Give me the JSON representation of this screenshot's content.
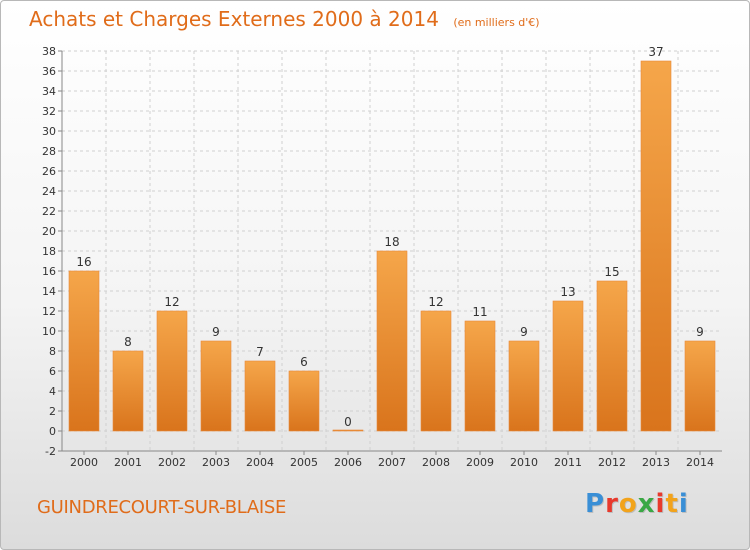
{
  "header": {
    "title": "Achats et Charges Externes 2000 à 2014",
    "unit": "(en milliers d'€)"
  },
  "footer": {
    "commune": "GUINDRECOURT-SUR-BLAISE",
    "brand_letters": [
      "P",
      "r",
      "o",
      "x",
      "i",
      "t",
      "i"
    ],
    "brand_colors": [
      "#3a8fd6",
      "#e8392c",
      "#f2a31b",
      "#3aa845",
      "#e8392c",
      "#f2a31b",
      "#3a8fd6"
    ]
  },
  "chart_data": {
    "type": "bar",
    "categories": [
      "2000",
      "2001",
      "2002",
      "2003",
      "2004",
      "2005",
      "2006",
      "2007",
      "2008",
      "2009",
      "2010",
      "2011",
      "2012",
      "2013",
      "2014"
    ],
    "values": [
      16,
      8,
      12,
      9,
      7,
      6,
      0,
      18,
      12,
      11,
      9,
      13,
      15,
      37,
      9
    ],
    "data_labels": [
      "16",
      "8",
      "12",
      "9",
      "7",
      "6",
      "0",
      "18",
      "12",
      "11",
      "9",
      "13",
      "15",
      "37",
      "9"
    ],
    "ylim": [
      -2,
      38
    ],
    "yticks": [
      -2,
      0,
      2,
      4,
      6,
      8,
      10,
      12,
      14,
      16,
      18,
      20,
      22,
      24,
      26,
      28,
      30,
      32,
      34,
      36,
      38
    ],
    "grid": true,
    "bar_color": "#f29a3a",
    "bar_color_dark": "#d9741c",
    "text_color": "#e06c1a"
  }
}
